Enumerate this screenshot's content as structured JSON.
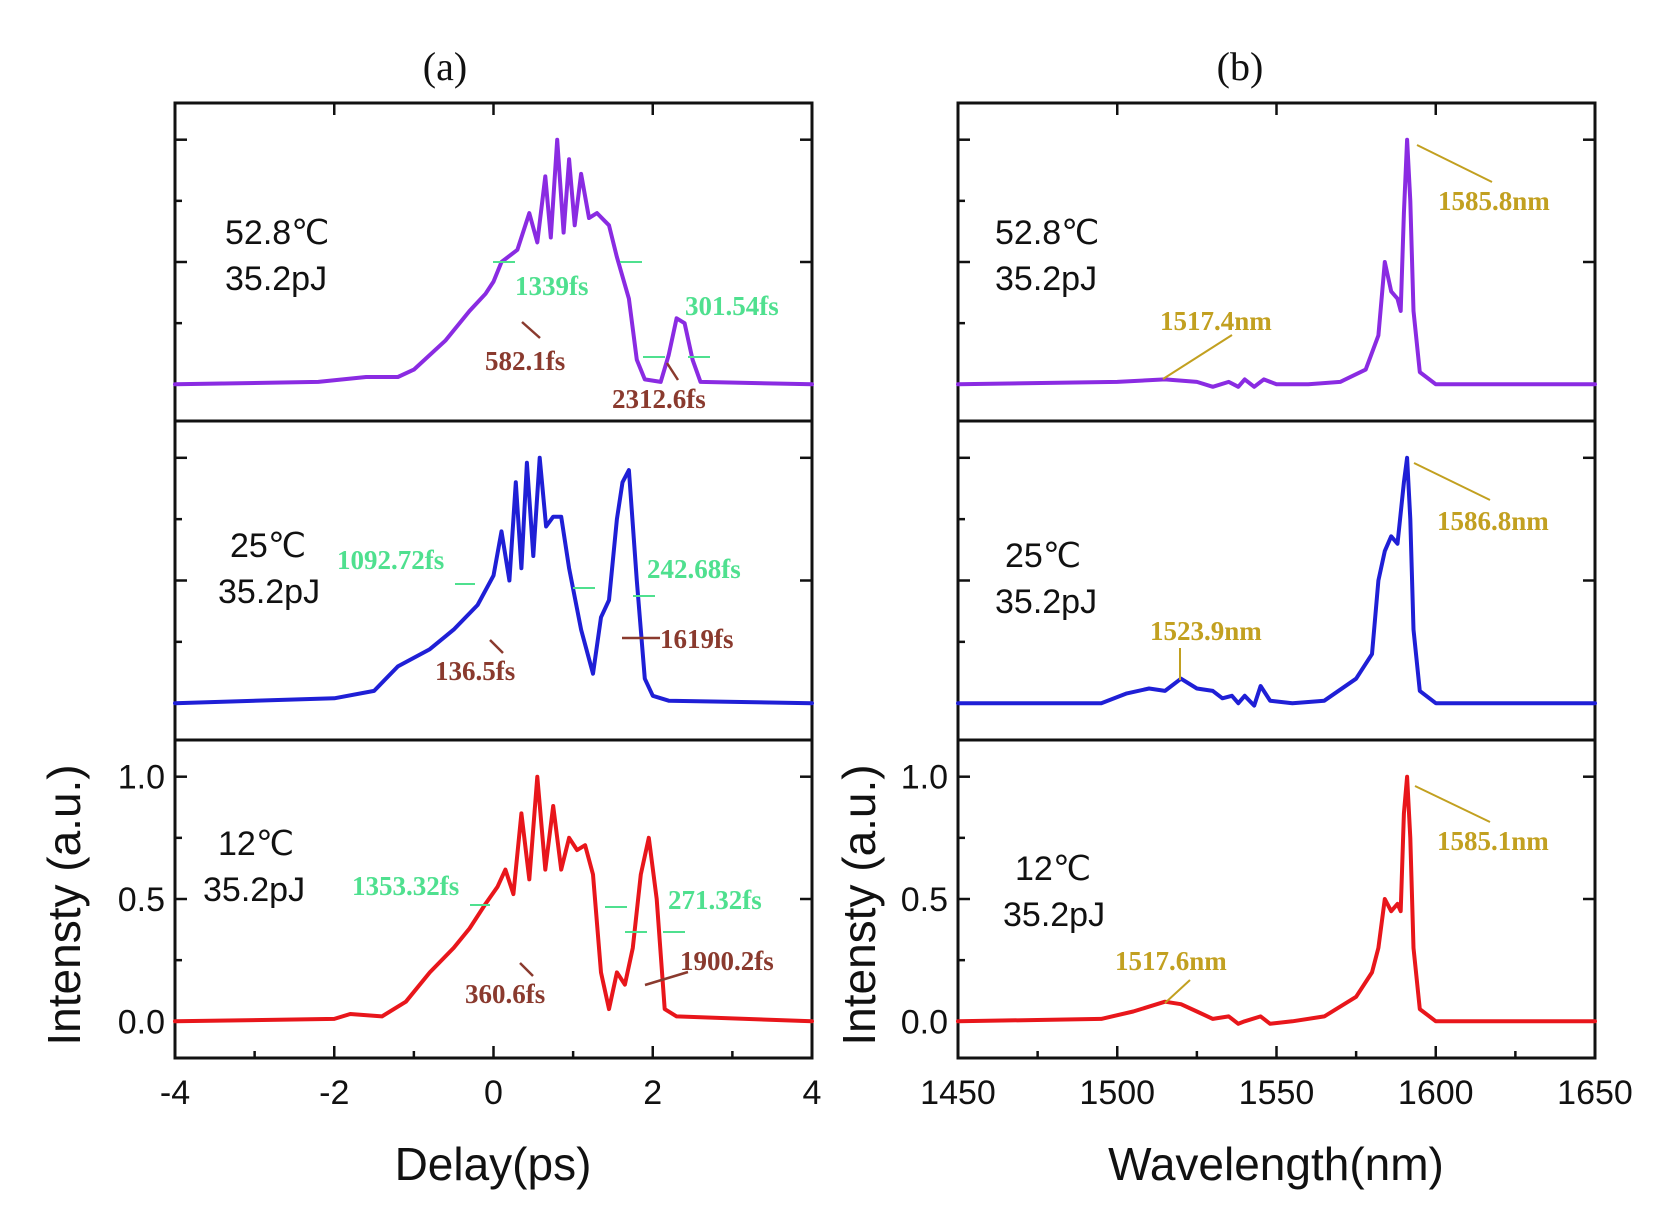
{
  "panels": {
    "a": {
      "label": "(a)"
    },
    "b": {
      "label": "(b)"
    }
  },
  "chart_data": [
    {
      "type": "line",
      "panel": "a",
      "xlabel": "Delay(ps)",
      "ylabel": "Intensty (a.u.)",
      "xlim": [
        -4,
        4
      ],
      "xticks": [
        "-4",
        "-2",
        "0",
        "2",
        "4"
      ],
      "ylim": [
        -0.15,
        1.15
      ],
      "yticks": [
        "0.0",
        "0.5",
        "1.0"
      ],
      "series": [
        {
          "name": "52.8℃ 35.2pJ",
          "color": "#8a2be2",
          "conditions": [
            "52.8℃",
            "35.2pJ"
          ],
          "points": [
            [
              -4,
              0
            ],
            [
              -2.2,
              0.01
            ],
            [
              -1.6,
              0.03
            ],
            [
              -1.2,
              0.03
            ],
            [
              -1,
              0.06
            ],
            [
              -0.6,
              0.18
            ],
            [
              -0.3,
              0.3
            ],
            [
              -0.1,
              0.37
            ],
            [
              0,
              0.42
            ],
            [
              0.1,
              0.5
            ],
            [
              0.3,
              0.55
            ],
            [
              0.45,
              0.7
            ],
            [
              0.55,
              0.58
            ],
            [
              0.65,
              0.85
            ],
            [
              0.72,
              0.6
            ],
            [
              0.8,
              1.0
            ],
            [
              0.88,
              0.62
            ],
            [
              0.95,
              0.92
            ],
            [
              1.02,
              0.65
            ],
            [
              1.1,
              0.86
            ],
            [
              1.2,
              0.68
            ],
            [
              1.3,
              0.7
            ],
            [
              1.45,
              0.65
            ],
            [
              1.55,
              0.52
            ],
            [
              1.7,
              0.35
            ],
            [
              1.8,
              0.1
            ],
            [
              1.9,
              0.02
            ],
            [
              2.1,
              0.01
            ],
            [
              2.2,
              0.12
            ],
            [
              2.3,
              0.27
            ],
            [
              2.4,
              0.25
            ],
            [
              2.5,
              0.1
            ],
            [
              2.6,
              0.01
            ],
            [
              4,
              0
            ]
          ],
          "annotations": [
            {
              "text": "1339fs",
              "color": "green"
            },
            {
              "text": "582.1fs",
              "color": "brown"
            },
            {
              "text": "301.54fs",
              "color": "green"
            },
            {
              "text": "2312.6fs",
              "color": "brown"
            }
          ]
        },
        {
          "name": "25℃ 35.2pJ",
          "color": "#1f1fd6",
          "conditions": [
            "25℃",
            "35.2pJ"
          ],
          "points": [
            [
              -4,
              0
            ],
            [
              -2,
              0.02
            ],
            [
              -1.5,
              0.05
            ],
            [
              -1.2,
              0.15
            ],
            [
              -0.8,
              0.22
            ],
            [
              -0.5,
              0.3
            ],
            [
              -0.2,
              0.4
            ],
            [
              0,
              0.52
            ],
            [
              0.1,
              0.7
            ],
            [
              0.2,
              0.5
            ],
            [
              0.28,
              0.9
            ],
            [
              0.35,
              0.55
            ],
            [
              0.42,
              0.98
            ],
            [
              0.5,
              0.6
            ],
            [
              0.58,
              1.0
            ],
            [
              0.66,
              0.72
            ],
            [
              0.75,
              0.76
            ],
            [
              0.85,
              0.76
            ],
            [
              0.95,
              0.55
            ],
            [
              1.1,
              0.3
            ],
            [
              1.25,
              0.12
            ],
            [
              1.35,
              0.35
            ],
            [
              1.45,
              0.42
            ],
            [
              1.55,
              0.75
            ],
            [
              1.62,
              0.9
            ],
            [
              1.7,
              0.95
            ],
            [
              1.8,
              0.5
            ],
            [
              1.9,
              0.1
            ],
            [
              2,
              0.03
            ],
            [
              2.2,
              0.01
            ],
            [
              4,
              0
            ]
          ],
          "annotations": [
            {
              "text": "1092.72fs",
              "color": "green"
            },
            {
              "text": "136.5fs",
              "color": "brown"
            },
            {
              "text": "242.68fs",
              "color": "green"
            },
            {
              "text": "1619fs",
              "color": "brown"
            }
          ]
        },
        {
          "name": "12℃ 35.2pJ",
          "color": "#e8161b",
          "conditions": [
            "12℃",
            "35.2pJ"
          ],
          "points": [
            [
              -4,
              0
            ],
            [
              -2,
              0.01
            ],
            [
              -1.8,
              0.03
            ],
            [
              -1.4,
              0.02
            ],
            [
              -1.1,
              0.08
            ],
            [
              -0.8,
              0.2
            ],
            [
              -0.5,
              0.3
            ],
            [
              -0.3,
              0.38
            ],
            [
              -0.1,
              0.48
            ],
            [
              0.05,
              0.55
            ],
            [
              0.15,
              0.62
            ],
            [
              0.25,
              0.52
            ],
            [
              0.35,
              0.85
            ],
            [
              0.45,
              0.58
            ],
            [
              0.55,
              1.0
            ],
            [
              0.65,
              0.62
            ],
            [
              0.75,
              0.88
            ],
            [
              0.85,
              0.62
            ],
            [
              0.95,
              0.75
            ],
            [
              1.05,
              0.7
            ],
            [
              1.15,
              0.72
            ],
            [
              1.25,
              0.6
            ],
            [
              1.35,
              0.2
            ],
            [
              1.45,
              0.05
            ],
            [
              1.55,
              0.2
            ],
            [
              1.65,
              0.15
            ],
            [
              1.75,
              0.3
            ],
            [
              1.85,
              0.6
            ],
            [
              1.95,
              0.75
            ],
            [
              2.05,
              0.5
            ],
            [
              2.15,
              0.05
            ],
            [
              2.3,
              0.02
            ],
            [
              4,
              0
            ]
          ],
          "annotations": [
            {
              "text": "1353.32fs",
              "color": "green"
            },
            {
              "text": "360.6fs",
              "color": "brown"
            },
            {
              "text": "271.32fs",
              "color": "green"
            },
            {
              "text": "1900.2fs",
              "color": "brown"
            }
          ]
        }
      ]
    },
    {
      "type": "line",
      "panel": "b",
      "xlabel": "Wavelength(nm)",
      "ylabel": "Intensty (a.u.)",
      "xlim": [
        1450,
        1650
      ],
      "xticks": [
        "1450",
        "1500",
        "1550",
        "1600",
        "1650"
      ],
      "ylim": [
        -0.15,
        1.15
      ],
      "yticks": [
        "0.0",
        "0.5",
        "1.0"
      ],
      "series": [
        {
          "name": "52.8℃ 35.2pJ",
          "color": "#8a2be2",
          "conditions": [
            "52.8℃",
            "35.2pJ"
          ],
          "points": [
            [
              1450,
              0
            ],
            [
              1500,
              0.01
            ],
            [
              1515,
              0.02
            ],
            [
              1525,
              0.01
            ],
            [
              1530,
              -0.01
            ],
            [
              1535,
              0.01
            ],
            [
              1538,
              -0.01
            ],
            [
              1540,
              0.02
            ],
            [
              1543,
              -0.01
            ],
            [
              1546,
              0.02
            ],
            [
              1550,
              0
            ],
            [
              1560,
              0
            ],
            [
              1570,
              0.01
            ],
            [
              1578,
              0.06
            ],
            [
              1582,
              0.2
            ],
            [
              1584,
              0.5
            ],
            [
              1586,
              0.38
            ],
            [
              1588,
              0.35
            ],
            [
              1589,
              0.3
            ],
            [
              1590,
              0.7
            ],
            [
              1591,
              1.0
            ],
            [
              1592,
              0.75
            ],
            [
              1593,
              0.3
            ],
            [
              1595,
              0.05
            ],
            [
              1600,
              0
            ],
            [
              1650,
              0
            ]
          ],
          "annotations": [
            {
              "text": "1585.8nm",
              "color": "gold"
            },
            {
              "text": "1517.4nm",
              "color": "gold"
            }
          ]
        },
        {
          "name": "25℃ 35.2pJ",
          "color": "#1f1fd6",
          "conditions": [
            "25℃",
            "35.2pJ"
          ],
          "points": [
            [
              1450,
              0
            ],
            [
              1495,
              0
            ],
            [
              1503,
              0.04
            ],
            [
              1510,
              0.06
            ],
            [
              1515,
              0.05
            ],
            [
              1520,
              0.1
            ],
            [
              1525,
              0.06
            ],
            [
              1530,
              0.05
            ],
            [
              1533,
              0.02
            ],
            [
              1536,
              0.03
            ],
            [
              1538,
              0
            ],
            [
              1540,
              0.03
            ],
            [
              1543,
              -0.01
            ],
            [
              1545,
              0.07
            ],
            [
              1548,
              0.01
            ],
            [
              1555,
              0
            ],
            [
              1565,
              0.01
            ],
            [
              1575,
              0.1
            ],
            [
              1580,
              0.2
            ],
            [
              1582,
              0.5
            ],
            [
              1584,
              0.62
            ],
            [
              1586,
              0.68
            ],
            [
              1588,
              0.65
            ],
            [
              1590,
              0.9
            ],
            [
              1591,
              1.0
            ],
            [
              1592,
              0.75
            ],
            [
              1593,
              0.3
            ],
            [
              1595,
              0.05
            ],
            [
              1600,
              0
            ],
            [
              1650,
              0
            ]
          ],
          "annotations": [
            {
              "text": "1586.8nm",
              "color": "gold"
            },
            {
              "text": "1523.9nm",
              "color": "gold"
            }
          ]
        },
        {
          "name": "12℃ 35.2pJ",
          "color": "#e8161b",
          "conditions": [
            "12℃",
            "35.2pJ"
          ],
          "points": [
            [
              1450,
              0
            ],
            [
              1495,
              0.01
            ],
            [
              1505,
              0.04
            ],
            [
              1515,
              0.08
            ],
            [
              1520,
              0.07
            ],
            [
              1525,
              0.04
            ],
            [
              1530,
              0.01
            ],
            [
              1535,
              0.02
            ],
            [
              1538,
              -0.01
            ],
            [
              1540,
              0
            ],
            [
              1545,
              0.02
            ],
            [
              1548,
              -0.01
            ],
            [
              1555,
              0
            ],
            [
              1565,
              0.02
            ],
            [
              1575,
              0.1
            ],
            [
              1580,
              0.2
            ],
            [
              1582,
              0.3
            ],
            [
              1584,
              0.5
            ],
            [
              1586,
              0.45
            ],
            [
              1588,
              0.48
            ],
            [
              1589,
              0.45
            ],
            [
              1590,
              0.85
            ],
            [
              1591,
              1.0
            ],
            [
              1592,
              0.75
            ],
            [
              1593,
              0.3
            ],
            [
              1595,
              0.05
            ],
            [
              1600,
              0
            ],
            [
              1650,
              0
            ]
          ],
          "annotations": [
            {
              "text": "1585.1nm",
              "color": "gold"
            },
            {
              "text": "1517.6nm",
              "color": "gold"
            }
          ]
        }
      ]
    }
  ]
}
